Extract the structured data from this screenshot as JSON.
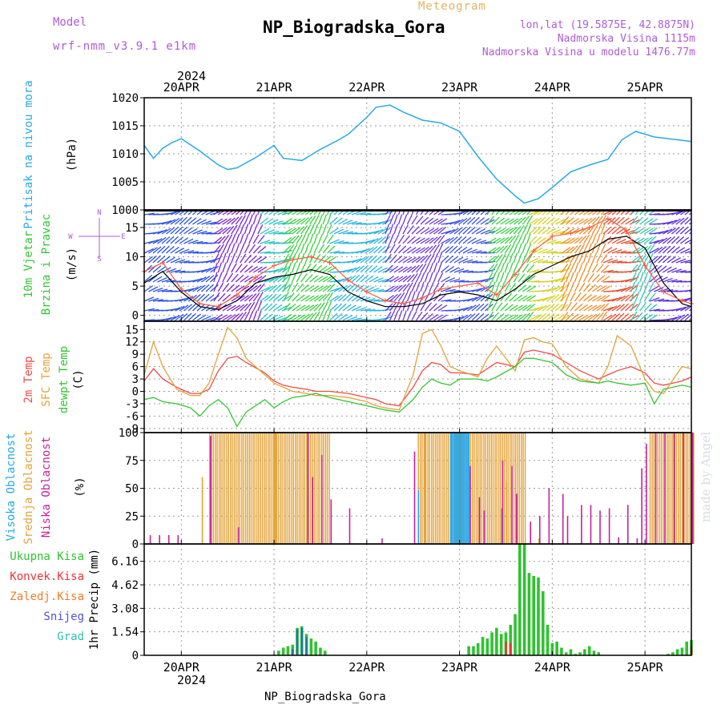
{
  "header": {
    "model_label": "Model",
    "model_name": "wrf-nmm_v3.9.1 e1km",
    "meteogram_label": "Meteogram",
    "station": "NP_Biogradska_Gora",
    "lonlat": "lon,lat (19.5875E, 42.8875N)",
    "elevation": "Nadmorska Visina 1115m",
    "model_elevation": "Nadmorska Visina u modelu 1476.77m",
    "year": "2024",
    "footer_station": "NP_Biogradska_Gora",
    "credit": "made by Angel"
  },
  "colors": {
    "pressure": "#29a9e4",
    "temp2m": "#ef4b4b",
    "sfc_temp": "#e3a33a",
    "dewpoint": "#33c633",
    "high_cloud": "#2aa7e8",
    "mid_cloud": "#e3a33a",
    "low_cloud": "#c4229c",
    "total_precip": "#2fc22f",
    "convective": "#ee3333",
    "freezing": "#f07d28",
    "snow": "#5050e0",
    "hail": "#2cc2b0",
    "wind_speed": "#000000",
    "wind_gust": "#ff5a3a",
    "grid": "#9a9a9a"
  },
  "chart_data": [
    {
      "id": "pressure",
      "type": "line",
      "ylabel_lines": [
        "Pritisak na nivou mora",
        "(hPa)"
      ],
      "ylim": [
        1000,
        1020
      ],
      "yticks": [
        1000,
        1005,
        1010,
        1015,
        1020
      ],
      "x_ticks": [
        "20APR",
        "21APR",
        "22APR",
        "23APR",
        "24APR",
        "25APR"
      ],
      "x_start_day": 19.6,
      "x_end_day": 25.5,
      "series": [
        {
          "x": [
            19.6,
            19.7,
            19.8,
            19.9,
            20.0,
            20.2,
            20.4,
            20.5,
            20.6,
            20.8,
            21.0,
            21.1,
            21.3,
            21.5,
            21.7,
            21.8,
            22.0,
            22.1,
            22.25,
            22.4,
            22.6,
            22.8,
            23.0,
            23.2,
            23.4,
            23.6,
            23.7,
            23.85,
            24.0,
            24.2,
            24.4,
            24.6,
            24.75,
            24.9,
            25.1,
            25.3,
            25.45,
            25.5
          ],
          "y": [
            1011.5,
            1009.2,
            1011.0,
            1012.0,
            1012.7,
            1010.5,
            1008.0,
            1007.2,
            1007.5,
            1009.3,
            1011.5,
            1009.2,
            1008.8,
            1010.8,
            1012.5,
            1013.5,
            1016.5,
            1018.3,
            1018.7,
            1017.4,
            1016.0,
            1015.5,
            1014.0,
            1009.5,
            1005.5,
            1002.5,
            1001.2,
            1002.0,
            1004.0,
            1006.8,
            1008.0,
            1009.0,
            1012.5,
            1014.0,
            1013.0,
            1012.6,
            1012.3,
            1012.2
          ]
        }
      ]
    },
    {
      "id": "wind",
      "type": "line",
      "ylabel_lines": [
        "10m Vjetar",
        "Brzina i Pravac",
        "(m/s)"
      ],
      "ylim": [
        -1,
        18
      ],
      "yticks": [
        0,
        5,
        10,
        15
      ],
      "legend": [
        "N",
        "E",
        "S",
        "W"
      ],
      "series": [
        {
          "name": "speed",
          "x": [
            19.6,
            19.8,
            20.0,
            20.2,
            20.4,
            20.6,
            20.8,
            21.0,
            21.2,
            21.4,
            21.6,
            21.8,
            22.0,
            22.2,
            22.4,
            22.6,
            22.8,
            23.0,
            23.2,
            23.4,
            23.6,
            23.8,
            24.0,
            24.2,
            24.4,
            24.6,
            24.8,
            25.0,
            25.2,
            25.4,
            25.5
          ],
          "y": [
            5.5,
            7.5,
            4.0,
            1.5,
            1.0,
            2.5,
            5.5,
            6.5,
            7.0,
            7.8,
            7.0,
            4.0,
            2.5,
            1.5,
            1.5,
            2.0,
            3.5,
            4.0,
            3.5,
            2.5,
            4.5,
            7.0,
            8.5,
            10.0,
            11.0,
            13.0,
            13.5,
            11.5,
            5.5,
            2.0,
            1.5
          ]
        },
        {
          "name": "gust",
          "x": [
            19.6,
            19.8,
            20.0,
            20.2,
            20.4,
            20.6,
            20.8,
            21.0,
            21.2,
            21.4,
            21.6,
            21.8,
            22.0,
            22.2,
            22.4,
            22.6,
            22.8,
            23.0,
            23.2,
            23.4,
            23.6,
            23.8,
            24.0,
            24.2,
            24.4,
            24.6,
            24.8,
            25.0,
            25.2,
            25.4,
            25.5
          ],
          "y": [
            7.5,
            9.0,
            4.5,
            2.0,
            1.5,
            3.5,
            6.5,
            8.5,
            9.5,
            10.0,
            9.0,
            6.0,
            4.0,
            2.5,
            2.0,
            3.0,
            4.5,
            5.0,
            5.5,
            3.5,
            7.0,
            11.0,
            13.5,
            14.0,
            15.0,
            16.5,
            14.5,
            8.5,
            4.0,
            2.5,
            2.0
          ]
        }
      ]
    },
    {
      "id": "temperature",
      "type": "line",
      "ylabel_lines": [
        "2m Temp",
        "SFC Temp",
        "dewpt Temp",
        "(C)"
      ],
      "ylim": [
        -10,
        17
      ],
      "yticks": [
        -9,
        -6,
        -3,
        0,
        3,
        6,
        9,
        12,
        15
      ],
      "series": [
        {
          "name": "2m Temp",
          "x": [
            19.6,
            19.7,
            19.8,
            19.95,
            20.1,
            20.2,
            20.3,
            20.4,
            20.5,
            20.6,
            20.7,
            20.9,
            21.0,
            21.1,
            21.2,
            21.35,
            21.45,
            21.6,
            21.8,
            22.0,
            22.1,
            22.2,
            22.35,
            22.5,
            22.6,
            22.7,
            22.8,
            22.9,
            23.0,
            23.2,
            23.3,
            23.4,
            23.6,
            23.7,
            23.8,
            23.9,
            24.0,
            24.15,
            24.3,
            24.5,
            24.6,
            24.7,
            24.85,
            25.0,
            25.1,
            25.2,
            25.4,
            25.5
          ],
          "y": [
            2.5,
            5.5,
            3.0,
            1.0,
            -0.5,
            -0.5,
            0.5,
            5.0,
            8.0,
            8.5,
            7.0,
            4.5,
            2.5,
            1.5,
            1.0,
            0.5,
            0.0,
            0.0,
            -0.5,
            -1.5,
            -2.0,
            -3.0,
            -3.5,
            1.0,
            5.0,
            7.0,
            6.5,
            4.5,
            4.5,
            4.0,
            5.5,
            7.0,
            6.0,
            9.5,
            10.0,
            9.5,
            9.0,
            7.0,
            5.0,
            3.0,
            4.0,
            5.0,
            6.0,
            4.5,
            2.0,
            1.5,
            2.5,
            3.5
          ]
        },
        {
          "name": "SFC Temp",
          "x": [
            19.6,
            19.7,
            19.8,
            19.95,
            20.1,
            20.2,
            20.3,
            20.4,
            20.5,
            20.6,
            20.7,
            20.9,
            21.0,
            21.1,
            21.2,
            21.35,
            21.45,
            21.6,
            21.8,
            22.0,
            22.1,
            22.2,
            22.35,
            22.5,
            22.6,
            22.7,
            22.8,
            22.9,
            23.0,
            23.2,
            23.3,
            23.4,
            23.6,
            23.7,
            23.8,
            23.9,
            24.0,
            24.15,
            24.3,
            24.5,
            24.6,
            24.7,
            24.85,
            25.0,
            25.1,
            25.2,
            25.4,
            25.5
          ],
          "y": [
            4.0,
            12.0,
            6.0,
            0.5,
            -1.0,
            -1.0,
            2.0,
            9.0,
            15.5,
            13.0,
            8.0,
            4.0,
            2.0,
            1.0,
            0.0,
            -0.5,
            -1.0,
            -1.0,
            -1.5,
            -2.5,
            -3.5,
            -4.0,
            -4.5,
            4.0,
            14.0,
            15.0,
            11.0,
            6.0,
            5.0,
            3.5,
            8.0,
            11.0,
            5.0,
            12.5,
            13.0,
            12.0,
            11.5,
            6.0,
            3.0,
            2.0,
            6.0,
            13.5,
            11.0,
            3.0,
            0.0,
            -0.5,
            6.0,
            5.5
          ]
        },
        {
          "name": "dewpt Temp",
          "x": [
            19.6,
            19.7,
            19.8,
            19.95,
            20.1,
            20.2,
            20.3,
            20.4,
            20.5,
            20.6,
            20.7,
            20.9,
            21.0,
            21.1,
            21.2,
            21.35,
            21.45,
            21.6,
            21.8,
            22.0,
            22.1,
            22.2,
            22.35,
            22.5,
            22.6,
            22.7,
            22.8,
            22.9,
            23.0,
            23.2,
            23.3,
            23.4,
            23.6,
            23.7,
            23.8,
            23.9,
            24.0,
            24.15,
            24.3,
            24.5,
            24.6,
            24.7,
            24.85,
            25.0,
            25.1,
            25.2,
            25.4,
            25.5
          ],
          "y": [
            -2.0,
            -1.5,
            -2.5,
            -3.0,
            -4.0,
            -6.0,
            -3.5,
            -2.0,
            -4.0,
            -8.5,
            -5.0,
            -2.0,
            -4.0,
            -2.5,
            -1.5,
            -1.0,
            -0.5,
            -1.5,
            -2.5,
            -3.5,
            -4.0,
            -4.5,
            -5.0,
            -2.0,
            1.0,
            3.0,
            2.0,
            1.5,
            3.0,
            3.0,
            2.5,
            3.5,
            6.0,
            8.0,
            8.0,
            7.5,
            7.0,
            4.0,
            2.5,
            2.0,
            2.5,
            2.0,
            1.5,
            2.0,
            -3.0,
            0.5,
            1.5,
            1.0
          ]
        }
      ]
    },
    {
      "id": "cloud",
      "type": "bar",
      "ylabel_lines": [
        "Visoka Oblacnost",
        "Srednja Oblacnost",
        "Niska Oblacnost",
        "(%)"
      ],
      "ylim": [
        0,
        100
      ],
      "yticks": [
        0,
        25,
        50,
        75,
        100
      ],
      "series": [
        {
          "name": "Srednja Oblacnost",
          "x_ranges": [
            [
              20.3,
              21.0,
              100
            ],
            [
              21.0,
              21.6,
              100
            ],
            [
              22.55,
              22.9,
              100
            ],
            [
              22.95,
              23.7,
              100
            ],
            [
              25.05,
              25.5,
              100
            ]
          ],
          "single": [
            [
              20.22,
              60
            ],
            [
              22.62,
              100
            ],
            [
              23.5,
              55
            ],
            [
              23.76,
              20
            ],
            [
              23.85,
              5
            ]
          ]
        },
        {
          "name": "Visoka Oblacnost",
          "x_ranges": [
            [
              22.9,
              23.1,
              100
            ]
          ],
          "single": [
            [
              22.55,
              48
            ],
            [
              23.45,
              32
            ]
          ]
        },
        {
          "name": "Niska Oblacnost",
          "values": [
            [
              19.65,
              8
            ],
            [
              19.75,
              8
            ],
            [
              19.85,
              8
            ],
            [
              19.95,
              8
            ],
            [
              20.3,
              97
            ],
            [
              20.6,
              15
            ],
            [
              21.35,
              100
            ],
            [
              21.4,
              60
            ],
            [
              21.5,
              80
            ],
            [
              21.6,
              40
            ],
            [
              21.8,
              32
            ],
            [
              22.15,
              5
            ],
            [
              22.5,
              83
            ],
            [
              23.1,
              70
            ],
            [
              23.2,
              42
            ],
            [
              23.25,
              30
            ],
            [
              23.45,
              75
            ],
            [
              23.55,
              70
            ],
            [
              23.6,
              45
            ],
            [
              23.75,
              20
            ],
            [
              23.85,
              25
            ],
            [
              23.95,
              50
            ],
            [
              24.1,
              45
            ],
            [
              24.15,
              25
            ],
            [
              24.3,
              35
            ],
            [
              24.4,
              35
            ],
            [
              24.5,
              30
            ],
            [
              24.6,
              32
            ],
            [
              24.7,
              6
            ],
            [
              24.8,
              35
            ],
            [
              24.9,
              5
            ],
            [
              24.95,
              68
            ],
            [
              25.0,
              90
            ],
            [
              25.1,
              100
            ],
            [
              25.2,
              100
            ],
            [
              25.3,
              100
            ],
            [
              25.4,
              100
            ],
            [
              25.5,
              100
            ]
          ]
        }
      ]
    },
    {
      "id": "precip",
      "type": "bar",
      "ylabel_lines": [
        "1hr Precip (mm)"
      ],
      "legend": [
        "Ukupna Kisa",
        "Konvek.Kisa",
        "Zaledj.Kisa",
        "Snijeg",
        "Grad"
      ],
      "ylim": [
        0,
        7.3
      ],
      "yticks": [
        0,
        1.54,
        3.08,
        4.62,
        6.16
      ],
      "series": [
        {
          "name": "Ukupna Kisa",
          "values": [
            [
              21.0,
              0.05
            ],
            [
              21.05,
              0.3
            ],
            [
              21.1,
              0.5
            ],
            [
              21.15,
              0.6
            ],
            [
              21.2,
              0.7
            ],
            [
              21.25,
              1.8
            ],
            [
              21.3,
              1.9
            ],
            [
              21.35,
              1.4
            ],
            [
              21.4,
              1.1
            ],
            [
              21.45,
              0.9
            ],
            [
              21.5,
              0.5
            ],
            [
              21.55,
              0.3
            ],
            [
              23.1,
              0.6
            ],
            [
              23.15,
              0.6
            ],
            [
              23.2,
              0.8
            ],
            [
              23.25,
              1.2
            ],
            [
              23.3,
              1.1
            ],
            [
              23.35,
              1.5
            ],
            [
              23.4,
              1.8
            ],
            [
              23.45,
              1.4
            ],
            [
              23.5,
              1.5
            ],
            [
              23.55,
              2.0
            ],
            [
              23.6,
              2.7
            ],
            [
              23.65,
              7.3
            ],
            [
              23.7,
              7.3
            ],
            [
              23.75,
              5.4
            ],
            [
              23.8,
              5.2
            ],
            [
              23.85,
              5.1
            ],
            [
              23.9,
              4.2
            ],
            [
              23.95,
              2.0
            ],
            [
              24.0,
              0.8
            ],
            [
              24.05,
              0.9
            ],
            [
              24.1,
              0.5
            ],
            [
              24.15,
              0.2
            ],
            [
              24.2,
              0.4
            ],
            [
              24.25,
              0.1
            ],
            [
              24.3,
              0.2
            ],
            [
              24.35,
              0.4
            ],
            [
              24.4,
              0.6
            ],
            [
              24.45,
              0.3
            ],
            [
              24.5,
              0.2
            ],
            [
              25.25,
              0.1
            ],
            [
              25.3,
              0.2
            ],
            [
              25.35,
              0.4
            ],
            [
              25.4,
              0.5
            ],
            [
              25.45,
              0.9
            ],
            [
              25.5,
              1.0
            ]
          ]
        },
        {
          "name": "Konvek.Kisa",
          "values": [
            [
              23.5,
              0.9
            ],
            [
              23.55,
              0.8
            ],
            [
              25.5,
              0.6
            ]
          ]
        },
        {
          "name": "Grad",
          "values": [
            [
              21.2,
              0.4
            ],
            [
              21.25,
              1.7
            ],
            [
              21.3,
              1.8
            ],
            [
              21.35,
              1.2
            ]
          ]
        }
      ]
    }
  ]
}
